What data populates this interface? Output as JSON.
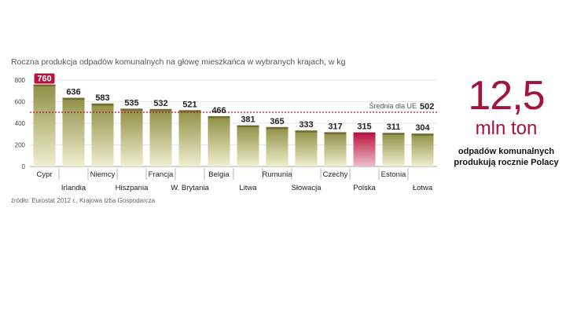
{
  "chart_data": {
    "type": "bar",
    "title": "Roczna produkcja odpadów komunalnych na głowę mieszkańca w wybranych krajach, w kg",
    "categories": [
      "Cypr",
      "Irlandia",
      "Niemcy",
      "Hiszpania",
      "Francja",
      "W. Brytania",
      "Belgia",
      "Litwa",
      "Rumunia",
      "Słowacja",
      "Czechy",
      "Polska",
      "Estonia",
      "Łotwa"
    ],
    "values": [
      760,
      636,
      583,
      535,
      532,
      521,
      466,
      381,
      365,
      333,
      317,
      315,
      311,
      304
    ],
    "value_labels": [
      "760",
      "636",
      "583",
      "535",
      "532",
      "521",
      "466",
      "381",
      "365",
      "333",
      "317",
      "315",
      "311",
      "304"
    ],
    "highlight": {
      "Cypr": "value-label",
      "Polska": "bar"
    },
    "ylim": [
      0,
      800
    ],
    "yticks": [
      "0",
      "200",
      "400",
      "600",
      "800"
    ],
    "grid": true,
    "reference_line": {
      "label": "Średnia dla UE",
      "value": 502,
      "value_label": "502"
    },
    "colors": {
      "bar": "#8b8b3f",
      "highlight": "#b8123e",
      "reference": "#b8123e"
    }
  },
  "source": "źródło: Eurostat 2012 r., Krajowa Izba Gospodarcza",
  "side_panel": {
    "big_number": "12,5",
    "unit": "mln ton",
    "caption": "odpadów komunalnych produkują rocznie Polacy"
  }
}
